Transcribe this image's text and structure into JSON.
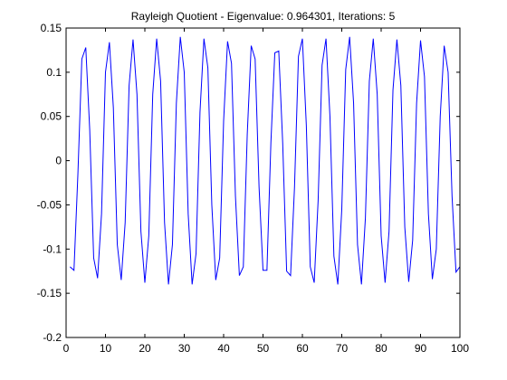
{
  "chart_data": {
    "type": "line",
    "title": "Rayleigh Quotient - Eigenvalue: 0.964301, Iterations: 5",
    "xlabel": "",
    "ylabel": "",
    "xlim": [
      0,
      100
    ],
    "ylim": [
      -0.2,
      0.15
    ],
    "xticks": [
      0,
      10,
      20,
      30,
      40,
      50,
      60,
      70,
      80,
      90,
      100
    ],
    "xtick_labels": [
      "0",
      "10",
      "20",
      "30",
      "40",
      "50",
      "60",
      "70",
      "80",
      "90",
      "100"
    ],
    "yticks": [
      0.15,
      0.1,
      0.05,
      0,
      -0.05,
      -0.1,
      -0.15,
      -0.2
    ],
    "ytick_labels": [
      "0.15",
      "0.1",
      "0.05",
      "0",
      "-0.05",
      "-0.1",
      "-0.15",
      "-0.2"
    ],
    "grid": false,
    "line_color": "#0000ff",
    "series": [
      {
        "x": [
          1,
          2,
          3,
          4,
          5,
          6,
          7,
          8,
          9,
          10,
          11,
          12,
          13,
          14,
          15,
          16,
          17,
          18,
          19,
          20,
          21,
          22,
          23,
          24,
          25,
          26,
          27,
          28,
          29,
          30,
          31,
          32,
          33,
          34,
          35,
          36,
          37,
          38,
          39,
          40,
          41,
          42,
          43,
          44,
          45,
          46,
          47,
          48,
          49,
          50,
          51,
          52,
          53,
          54,
          55,
          56,
          57,
          58,
          59,
          60,
          61,
          62,
          63,
          64,
          65,
          66,
          67,
          68,
          69,
          70,
          71,
          72,
          73,
          74,
          75,
          76,
          77,
          78,
          79,
          80,
          81,
          82,
          83,
          84,
          85,
          86,
          87,
          88,
          89,
          90,
          91,
          92,
          93,
          94,
          95,
          96,
          97,
          98,
          99,
          100
        ],
        "values": [
          -0.12,
          -0.124,
          -0.015,
          0.115,
          0.128,
          0.035,
          -0.11,
          -0.133,
          -0.06,
          0.1,
          0.134,
          0.06,
          -0.095,
          -0.135,
          -0.07,
          0.085,
          0.137,
          0.075,
          -0.08,
          -0.138,
          -0.085,
          0.075,
          0.138,
          0.09,
          -0.07,
          -0.14,
          -0.095,
          0.065,
          0.14,
          0.1,
          -0.06,
          -0.14,
          -0.105,
          0.055,
          0.138,
          0.105,
          -0.05,
          -0.135,
          -0.11,
          0.045,
          0.135,
          0.11,
          -0.04,
          -0.13,
          -0.12,
          0.03,
          0.13,
          0.115,
          -0.03,
          -0.124,
          -0.124,
          0.02,
          0.122,
          0.124,
          0.02,
          -0.125,
          -0.13,
          -0.03,
          0.118,
          0.138,
          0.04,
          -0.12,
          -0.138,
          -0.045,
          0.108,
          0.138,
          0.05,
          -0.108,
          -0.14,
          -0.055,
          0.103,
          0.14,
          0.065,
          -0.095,
          -0.14,
          -0.065,
          0.09,
          0.138,
          0.075,
          -0.085,
          -0.138,
          -0.08,
          0.08,
          0.137,
          0.085,
          -0.075,
          -0.137,
          -0.09,
          0.065,
          0.136,
          0.095,
          -0.06,
          -0.134,
          -0.1,
          0.05,
          0.13,
          0.1,
          -0.04,
          -0.126,
          -0.12
        ]
      }
    ]
  }
}
